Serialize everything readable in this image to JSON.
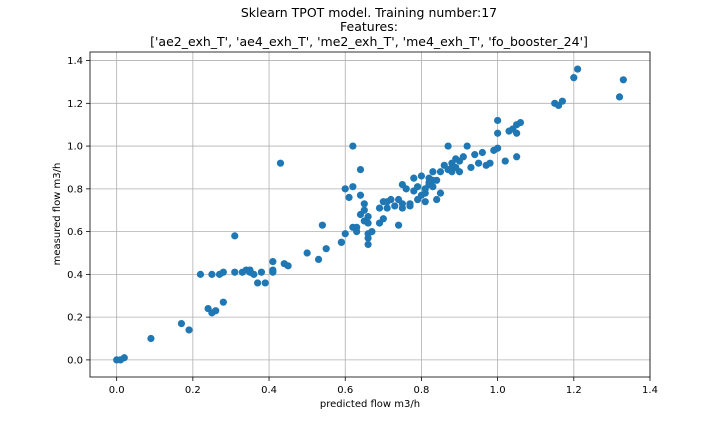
{
  "chart_data": {
    "type": "scatter",
    "title_lines": [
      "Sklearn TPOT model. Training number:17",
      "Features:",
      "['ae2_exh_T', 'ae4_exh_T', 'me2_exh_T', 'me4_exh_T', 'fo_booster_24']"
    ],
    "xlabel": "predicted flow m3/h",
    "ylabel": "measured flow m3/h",
    "xlim": [
      -0.07,
      1.4
    ],
    "ylim": [
      -0.08,
      1.44
    ],
    "xticks": [
      "0.0",
      "0.2",
      "0.4",
      "0.6",
      "0.8",
      "1.0",
      "1.2",
      "1.4"
    ],
    "yticks": [
      "0.0",
      "0.2",
      "0.4",
      "0.6",
      "0.8",
      "1.0",
      "1.2",
      "1.4"
    ],
    "grid": true,
    "marker_color": "#1f77b4",
    "points": [
      [
        0.0,
        0.0
      ],
      [
        0.01,
        0.0
      ],
      [
        0.02,
        0.01
      ],
      [
        0.09,
        0.1
      ],
      [
        0.17,
        0.17
      ],
      [
        0.19,
        0.14
      ],
      [
        0.22,
        0.4
      ],
      [
        0.24,
        0.24
      ],
      [
        0.25,
        0.22
      ],
      [
        0.26,
        0.23
      ],
      [
        0.25,
        0.4
      ],
      [
        0.27,
        0.4
      ],
      [
        0.28,
        0.41
      ],
      [
        0.28,
        0.27
      ],
      [
        0.31,
        0.41
      ],
      [
        0.31,
        0.58
      ],
      [
        0.33,
        0.41
      ],
      [
        0.34,
        0.42
      ],
      [
        0.35,
        0.41
      ],
      [
        0.35,
        0.42
      ],
      [
        0.36,
        0.4
      ],
      [
        0.37,
        0.36
      ],
      [
        0.38,
        0.41
      ],
      [
        0.39,
        0.36
      ],
      [
        0.41,
        0.42
      ],
      [
        0.41,
        0.46
      ],
      [
        0.41,
        0.41
      ],
      [
        0.43,
        0.92
      ],
      [
        0.44,
        0.45
      ],
      [
        0.45,
        0.44
      ],
      [
        0.5,
        0.5
      ],
      [
        0.53,
        0.47
      ],
      [
        0.54,
        0.63
      ],
      [
        0.55,
        0.52
      ],
      [
        0.59,
        0.55
      ],
      [
        0.59,
        0.55
      ],
      [
        0.6,
        0.59
      ],
      [
        0.6,
        0.8
      ],
      [
        0.61,
        0.76
      ],
      [
        0.62,
        1.0
      ],
      [
        0.62,
        0.81
      ],
      [
        0.62,
        0.62
      ],
      [
        0.63,
        0.6
      ],
      [
        0.63,
        0.62
      ],
      [
        0.64,
        0.89
      ],
      [
        0.64,
        0.68
      ],
      [
        0.64,
        0.77
      ],
      [
        0.65,
        0.7
      ],
      [
        0.65,
        0.73
      ],
      [
        0.65,
        0.65
      ],
      [
        0.66,
        0.57
      ],
      [
        0.66,
        0.59
      ],
      [
        0.66,
        0.54
      ],
      [
        0.67,
        0.6
      ],
      [
        0.66,
        0.67
      ],
      [
        0.66,
        0.64
      ],
      [
        0.69,
        0.64
      ],
      [
        0.69,
        0.71
      ],
      [
        0.7,
        0.66
      ],
      [
        0.7,
        0.74
      ],
      [
        0.71,
        0.71
      ],
      [
        0.71,
        0.74
      ],
      [
        0.72,
        0.75
      ],
      [
        0.73,
        0.72
      ],
      [
        0.74,
        0.75
      ],
      [
        0.74,
        0.63
      ],
      [
        0.75,
        0.71
      ],
      [
        0.75,
        0.73
      ],
      [
        0.75,
        0.82
      ],
      [
        0.76,
        0.8
      ],
      [
        0.77,
        0.72
      ],
      [
        0.77,
        0.73
      ],
      [
        0.78,
        0.85
      ],
      [
        0.78,
        0.79
      ],
      [
        0.79,
        0.81
      ],
      [
        0.79,
        0.75
      ],
      [
        0.8,
        0.77
      ],
      [
        0.8,
        0.86
      ],
      [
        0.81,
        0.74
      ],
      [
        0.81,
        0.78
      ],
      [
        0.81,
        0.8
      ],
      [
        0.82,
        0.83
      ],
      [
        0.82,
        0.85
      ],
      [
        0.82,
        0.82
      ],
      [
        0.83,
        0.84
      ],
      [
        0.83,
        0.81
      ],
      [
        0.83,
        0.88
      ],
      [
        0.84,
        0.75
      ],
      [
        0.84,
        0.84
      ],
      [
        0.85,
        0.78
      ],
      [
        0.85,
        0.88
      ],
      [
        0.86,
        0.91
      ],
      [
        0.87,
        1.0
      ],
      [
        0.87,
        0.89
      ],
      [
        0.88,
        0.9
      ],
      [
        0.88,
        0.92
      ],
      [
        0.88,
        0.88
      ],
      [
        0.89,
        0.94
      ],
      [
        0.89,
        0.9
      ],
      [
        0.9,
        0.88
      ],
      [
        0.9,
        0.93
      ],
      [
        0.91,
        0.95
      ],
      [
        0.92,
        1.0
      ],
      [
        0.93,
        0.9
      ],
      [
        0.94,
        0.96
      ],
      [
        0.95,
        0.92
      ],
      [
        0.96,
        0.97
      ],
      [
        0.97,
        0.91
      ],
      [
        0.98,
        0.92
      ],
      [
        0.99,
        0.98
      ],
      [
        1.0,
        0.99
      ],
      [
        1.0,
        1.06
      ],
      [
        1.0,
        1.12
      ],
      [
        1.02,
        0.93
      ],
      [
        1.03,
        1.07
      ],
      [
        1.04,
        1.08
      ],
      [
        1.05,
        1.1
      ],
      [
        1.05,
        1.06
      ],
      [
        1.05,
        0.95
      ],
      [
        1.06,
        1.11
      ],
      [
        1.15,
        1.2
      ],
      [
        1.16,
        1.19
      ],
      [
        1.17,
        1.21
      ],
      [
        1.2,
        1.32
      ],
      [
        1.21,
        1.36
      ],
      [
        1.32,
        1.23
      ],
      [
        1.33,
        1.31
      ]
    ]
  }
}
